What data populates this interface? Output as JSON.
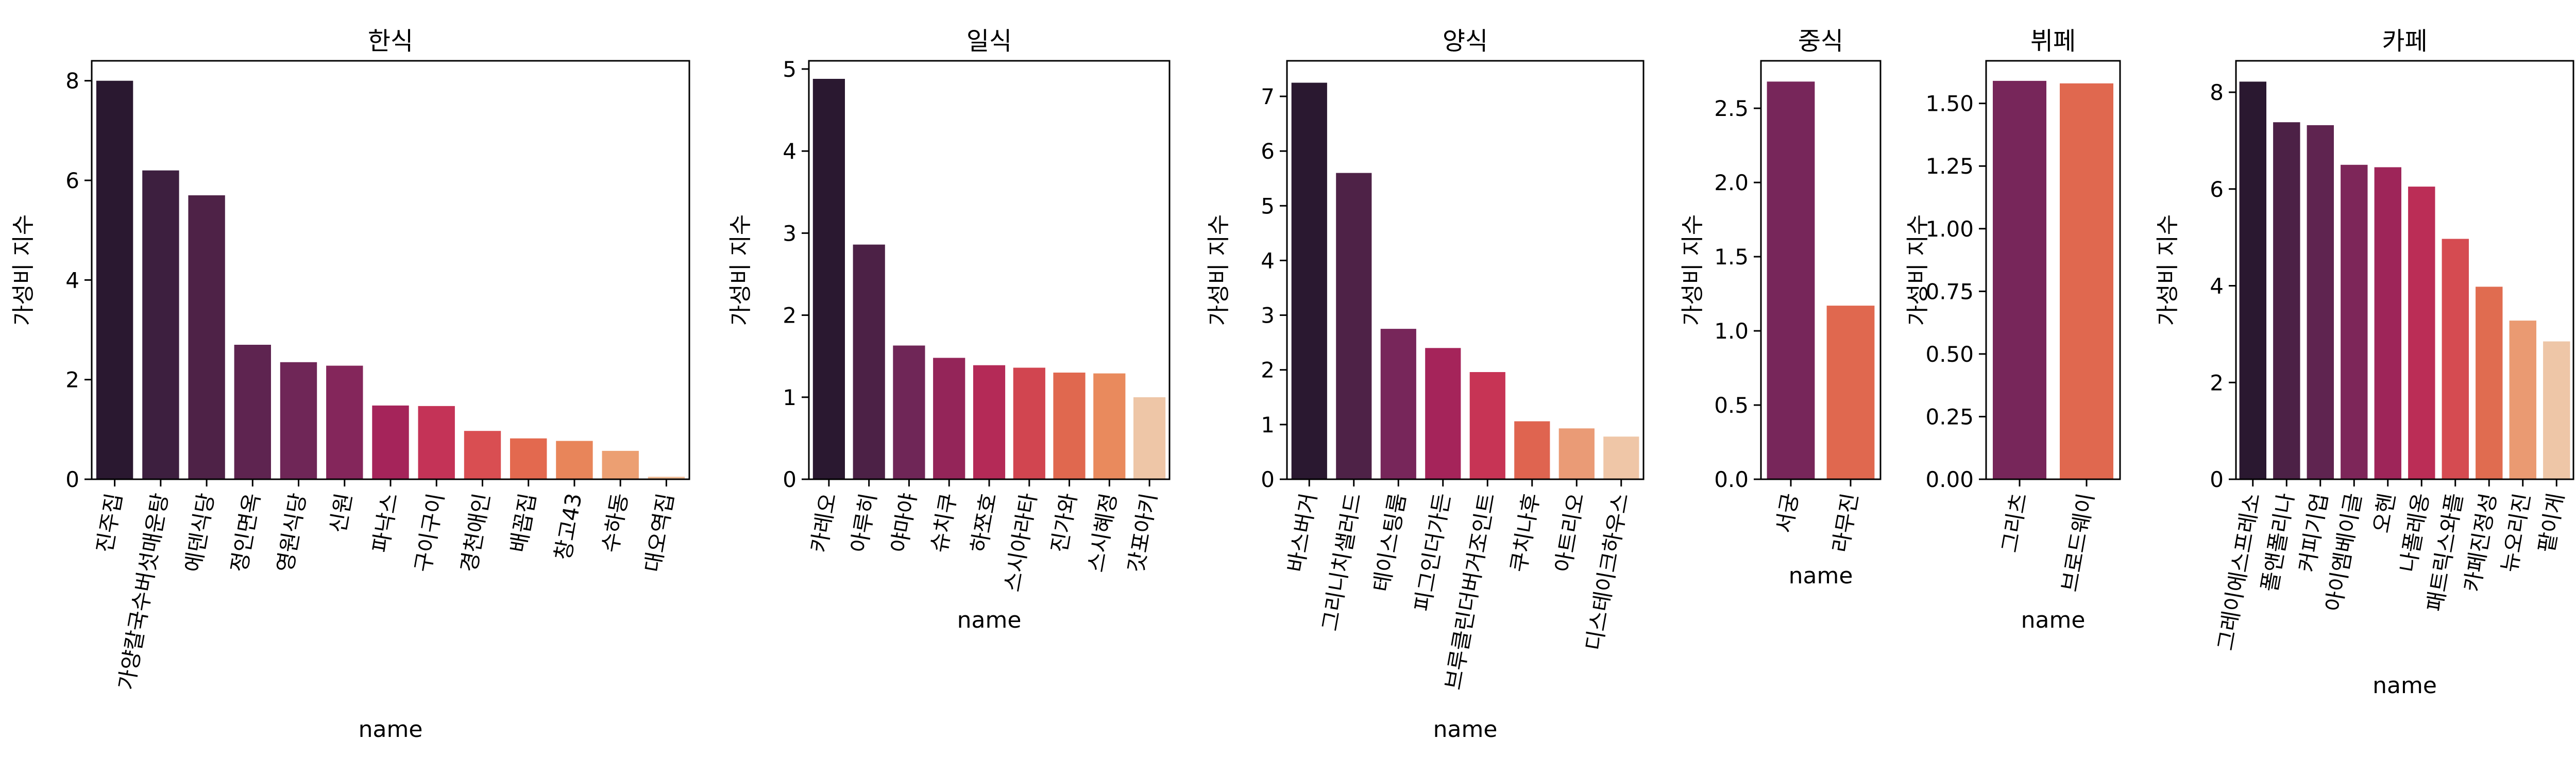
{
  "chart_data": [
    {
      "type": "bar",
      "title": "한식",
      "xlabel": "name",
      "ylabel": "가성비 지수",
      "ylim": [
        0,
        8.4
      ],
      "yticks": [
        0,
        2,
        4,
        6,
        8
      ],
      "categories": [
        "진주집",
        "가양칼국수버섯매운탕",
        "에덴식당",
        "정인면옥",
        "영원식당",
        "신원",
        "파낙스",
        "구이구이",
        "경천애인",
        "배꼽집",
        "창고43",
        "수하동",
        "대오역집"
      ],
      "values": [
        8.0,
        6.2,
        5.7,
        2.7,
        2.35,
        2.28,
        1.48,
        1.47,
        0.97,
        0.82,
        0.77,
        0.57,
        0.05
      ],
      "colors": [
        "#2a1830",
        "#3d1f3f",
        "#4e2247",
        "#5e2450",
        "#6f2657",
        "#84265b",
        "#a5245a",
        "#c43357",
        "#d94e52",
        "#e3694f",
        "#e8855a",
        "#ec9f72",
        "#efbb95"
      ],
      "grid": false
    },
    {
      "type": "bar",
      "title": "일식",
      "xlabel": "name",
      "ylabel": "가성비 지수",
      "ylim": [
        0,
        5.1
      ],
      "yticks": [
        0,
        1,
        2,
        3,
        4,
        5
      ],
      "categories": [
        "카레오",
        "아루히",
        "야마야",
        "슈치쿠",
        "하쪼호",
        "스시아라타",
        "진가와",
        "스시혜정",
        "갓포아키"
      ],
      "values": [
        4.88,
        2.86,
        1.63,
        1.48,
        1.39,
        1.36,
        1.3,
        1.29,
        1.0
      ],
      "colors": [
        "#2a1830",
        "#4c2146",
        "#6f2657",
        "#942559",
        "#b42a57",
        "#d14550",
        "#e0684f",
        "#e98a5d",
        "#eec6a7"
      ],
      "grid": false
    },
    {
      "type": "bar",
      "title": "양식",
      "xlabel": "name",
      "ylabel": "가성비 지수",
      "ylim": [
        0,
        7.65
      ],
      "yticks": [
        0,
        1,
        2,
        3,
        4,
        5,
        6,
        7
      ],
      "categories": [
        "바스버거",
        "그리니치샐러드",
        "테이스팅룸",
        "피그인더가든",
        "브루클린더버거조인트",
        "쿠치나후",
        "아트리오",
        "디스테이크하우스"
      ],
      "values": [
        7.25,
        5.6,
        2.75,
        2.4,
        1.96,
        1.06,
        0.93,
        0.78
      ],
      "colors": [
        "#2a1830",
        "#4e2247",
        "#77265a",
        "#a5245a",
        "#c73455",
        "#df6450",
        "#ea9b76",
        "#efc6a7"
      ],
      "grid": false
    },
    {
      "type": "bar",
      "title": "중식",
      "xlabel": "name",
      "ylabel": "가성비 지수",
      "ylim": [
        0,
        2.82
      ],
      "yticks": [
        0.0,
        0.5,
        1.0,
        1.5,
        2.0,
        2.5
      ],
      "ytick_labels": [
        "0.0",
        "0.5",
        "1.0",
        "1.5",
        "2.0",
        "2.5"
      ],
      "categories": [
        "서궁",
        "라무진"
      ],
      "values": [
        2.68,
        1.17
      ],
      "colors": [
        "#77265a",
        "#e0684f"
      ],
      "grid": false
    },
    {
      "type": "bar",
      "title": "뷔페",
      "xlabel": "name",
      "ylabel": "가성비 지수",
      "ylim": [
        0,
        1.67
      ],
      "yticks": [
        0.0,
        0.25,
        0.5,
        0.75,
        1.0,
        1.25,
        1.5
      ],
      "ytick_labels": [
        "0.00",
        "0.25",
        "0.50",
        "0.75",
        "1.00",
        "1.25",
        "1.50"
      ],
      "categories": [
        "그리츠",
        "브로드웨이"
      ],
      "values": [
        1.59,
        1.58
      ],
      "colors": [
        "#77265a",
        "#e0684f"
      ],
      "grid": false
    },
    {
      "type": "bar",
      "title": "카페",
      "xlabel": "name",
      "ylabel": "가성비 지수",
      "ylim": [
        0,
        8.65
      ],
      "yticks": [
        0,
        2,
        4,
        6,
        8
      ],
      "categories": [
        "그레이에스프레소",
        "폴앤폴리나",
        "커피기업",
        "아이엠베이글",
        "오헨",
        "나폴레옹",
        "패트릭스와플",
        "카페진정성",
        "뉴오리진",
        "팥이게"
      ],
      "values": [
        8.22,
        7.38,
        7.32,
        6.5,
        6.45,
        6.05,
        4.97,
        3.98,
        3.28,
        2.85
      ],
      "colors": [
        "#2a1830",
        "#4c2146",
        "#5f2450",
        "#7d2659",
        "#9e2559",
        "#bb2d56",
        "#d54b51",
        "#e06c50",
        "#ea9a72",
        "#eec6a7"
      ],
      "grid": false
    }
  ]
}
